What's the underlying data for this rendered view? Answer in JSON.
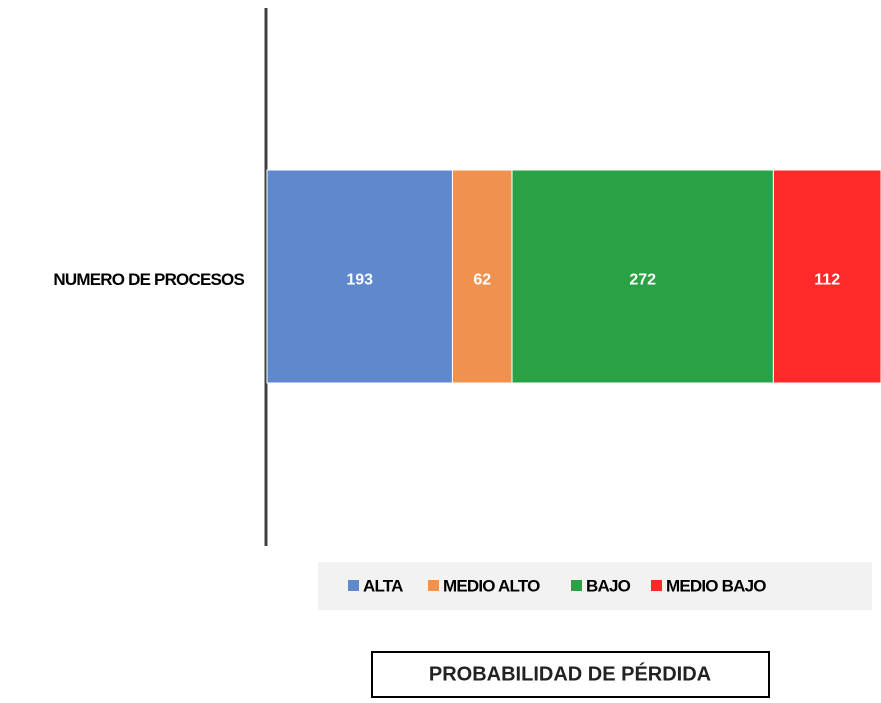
{
  "chart_data": {
    "type": "bar",
    "orientation": "horizontal",
    "stacked": true,
    "title": "PROBABILIDAD DE PÉRDIDA",
    "categories": [
      "NUMERO DE PROCESOS"
    ],
    "series": [
      {
        "name": "ALTA",
        "color": "#6088cc",
        "values": [
          193
        ]
      },
      {
        "name": "MEDIO ALTO",
        "color": "#f0924f",
        "values": [
          62
        ]
      },
      {
        "name": "BAJO",
        "color": "#2aa144",
        "values": [
          272
        ]
      },
      {
        "name": "MEDIO BAJO",
        "color": "#fe2a2a",
        "values": [
          112
        ]
      }
    ],
    "xlim": [
      0,
      639
    ],
    "legend": "bottom"
  }
}
